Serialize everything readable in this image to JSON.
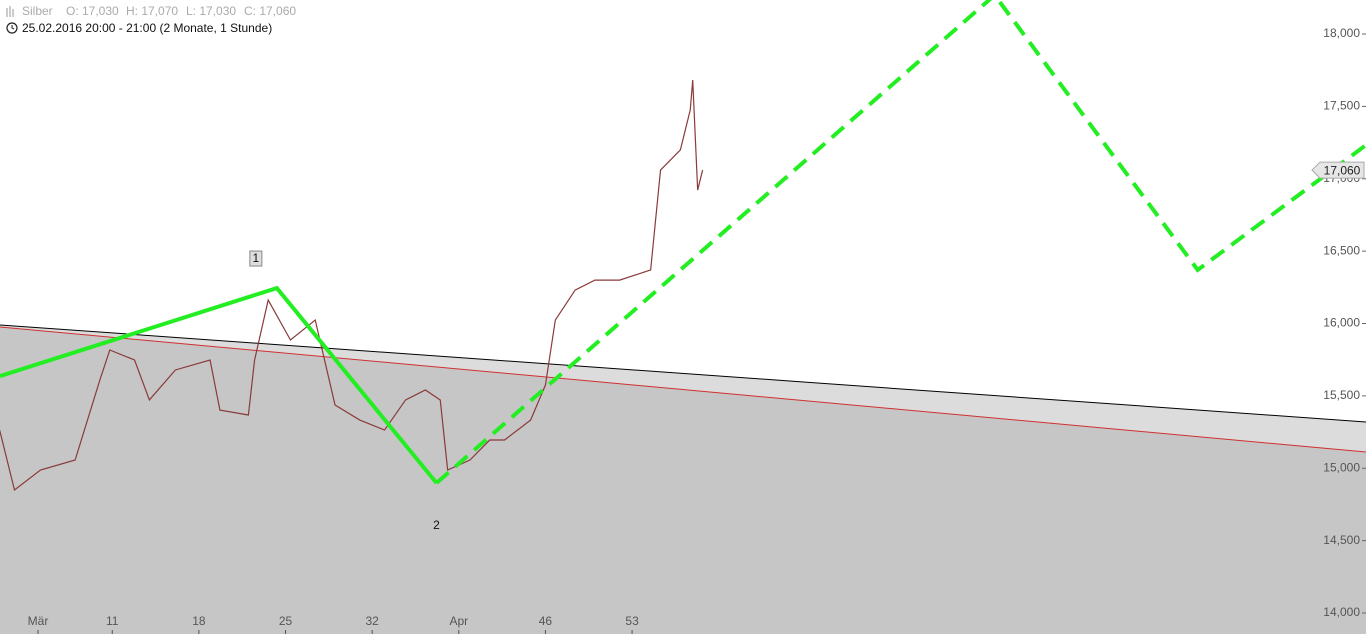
{
  "chart_data": {
    "type": "line",
    "header": {
      "symbol": "Silber",
      "open": "O: 17,030",
      "high": "H: 17,070",
      "low": "L: 17,030",
      "close": "C: 17,060"
    },
    "subtitle": "25.02.2016 20:00 - 21:00 (2 Monate, 1 Stunde)",
    "xlim": [
      1.93,
      112.3
    ],
    "ylim": [
      13855,
      18235
    ],
    "xticks": [
      {
        "value": 5,
        "label": "Mär"
      },
      11,
      18,
      25,
      32,
      {
        "value": 39,
        "label": "Apr"
      },
      46,
      53
    ],
    "yticks": [
      {
        "value": 14000,
        "label": "14,000"
      },
      {
        "value": 14500,
        "label": "14,500"
      },
      {
        "value": 15000,
        "label": "15,000"
      },
      {
        "value": 15500,
        "label": "15,500"
      },
      {
        "value": 16000,
        "label": "16,000"
      },
      {
        "value": 16500,
        "label": "16,500"
      },
      {
        "value": 17000,
        "label": "17,000"
      },
      {
        "value": 17500,
        "label": "17,500"
      },
      {
        "value": 18000,
        "label": "18,000"
      }
    ],
    "last_price": {
      "value": 17060,
      "label": "17,060"
    },
    "series": [
      {
        "color": "#000000",
        "fill": "#dcdcdc",
        "style": "solid",
        "width": 1,
        "x": [
          1.93,
          112.3
        ],
        "values": [
          15990,
          15320
        ]
      },
      {
        "color": "#d03030",
        "fill": "#c6c6c6",
        "style": "solid",
        "width": 1,
        "x": [
          1.93,
          112.3
        ],
        "values": [
          15976,
          15112
        ]
      },
      {
        "color": "#8a3a3a",
        "style": "solid",
        "width": 1.2,
        "x": [
          1.9,
          3.1,
          5.2,
          8.0,
          10.0,
          10.8,
          12.8,
          14.0,
          16.1,
          18.9,
          19.7,
          22.0,
          22.5,
          23.6,
          25.4,
          27.4,
          29.0,
          31.0,
          33.0,
          34.7,
          36.3,
          37.5,
          38.1,
          39.9,
          41.5,
          42.7,
          44.8,
          46.0,
          46.8,
          48.4,
          50.0,
          52.0,
          54.5,
          55.3,
          56.9,
          57.7,
          57.9,
          58.3,
          58.7
        ],
        "values": [
          15264,
          14850,
          14988,
          15057,
          15610,
          15817,
          15748,
          15472,
          15679,
          15748,
          15402,
          15368,
          15748,
          16162,
          15886,
          16024,
          15437,
          15333,
          15264,
          15472,
          15541,
          15472,
          14988,
          15057,
          15195,
          15195,
          15333,
          15575,
          16024,
          16231,
          16300,
          16300,
          16370,
          17060,
          17199,
          17475,
          17682,
          16922,
          17060
        ]
      },
      {
        "color": "#22ee22",
        "style": "solid",
        "width": 4,
        "x": [
          1.93,
          24.3,
          37.2
        ],
        "values": [
          15637,
          16245,
          14898
        ],
        "point_labels": [
          null,
          "1",
          "2"
        ]
      },
      {
        "color": "#22ee22",
        "style": "dashed",
        "width": 4,
        "x": [
          37.2,
          82.3,
          98.7,
          112.3
        ],
        "values": [
          14898,
          18269,
          16370,
          17233
        ]
      }
    ]
  }
}
